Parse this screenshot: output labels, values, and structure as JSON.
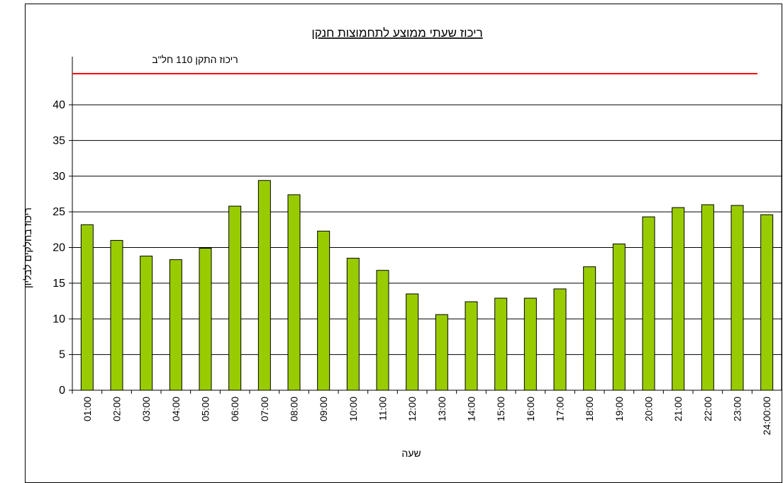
{
  "chart_data": {
    "type": "bar",
    "title": "ריכוז שעתי ממוצע לתחמוצות חנקן",
    "xlabel": "שעה",
    "ylabel": "ריכוז בחלקים לבליון",
    "categories": [
      "01:00",
      "02:00",
      "03:00",
      "04:00",
      "05:00",
      "06:00",
      "07:00",
      "08:00",
      "09:00",
      "10:00",
      "11:00",
      "12:00",
      "13:00",
      "14:00",
      "15:00",
      "16:00",
      "17:00",
      "18:00",
      "19:00",
      "20:00",
      "21:00",
      "22:00",
      "23:00",
      "24:00:00"
    ],
    "values": [
      23.2,
      21.0,
      18.8,
      18.3,
      19.9,
      25.8,
      29.4,
      27.4,
      22.3,
      18.5,
      16.8,
      13.5,
      10.6,
      12.4,
      12.9,
      12.9,
      14.2,
      17.3,
      20.5,
      24.3,
      25.6,
      26.0,
      25.9,
      24.6
    ],
    "color": "#99cc00",
    "ylim": [
      0,
      40
    ],
    "yticks": [
      0,
      5,
      10,
      15,
      20,
      25,
      30,
      35,
      40
    ],
    "grid": true,
    "reference_line": {
      "label": "ריכוז התקן 110 חל\"ב",
      "value": 110,
      "color": "#ff0000"
    }
  }
}
